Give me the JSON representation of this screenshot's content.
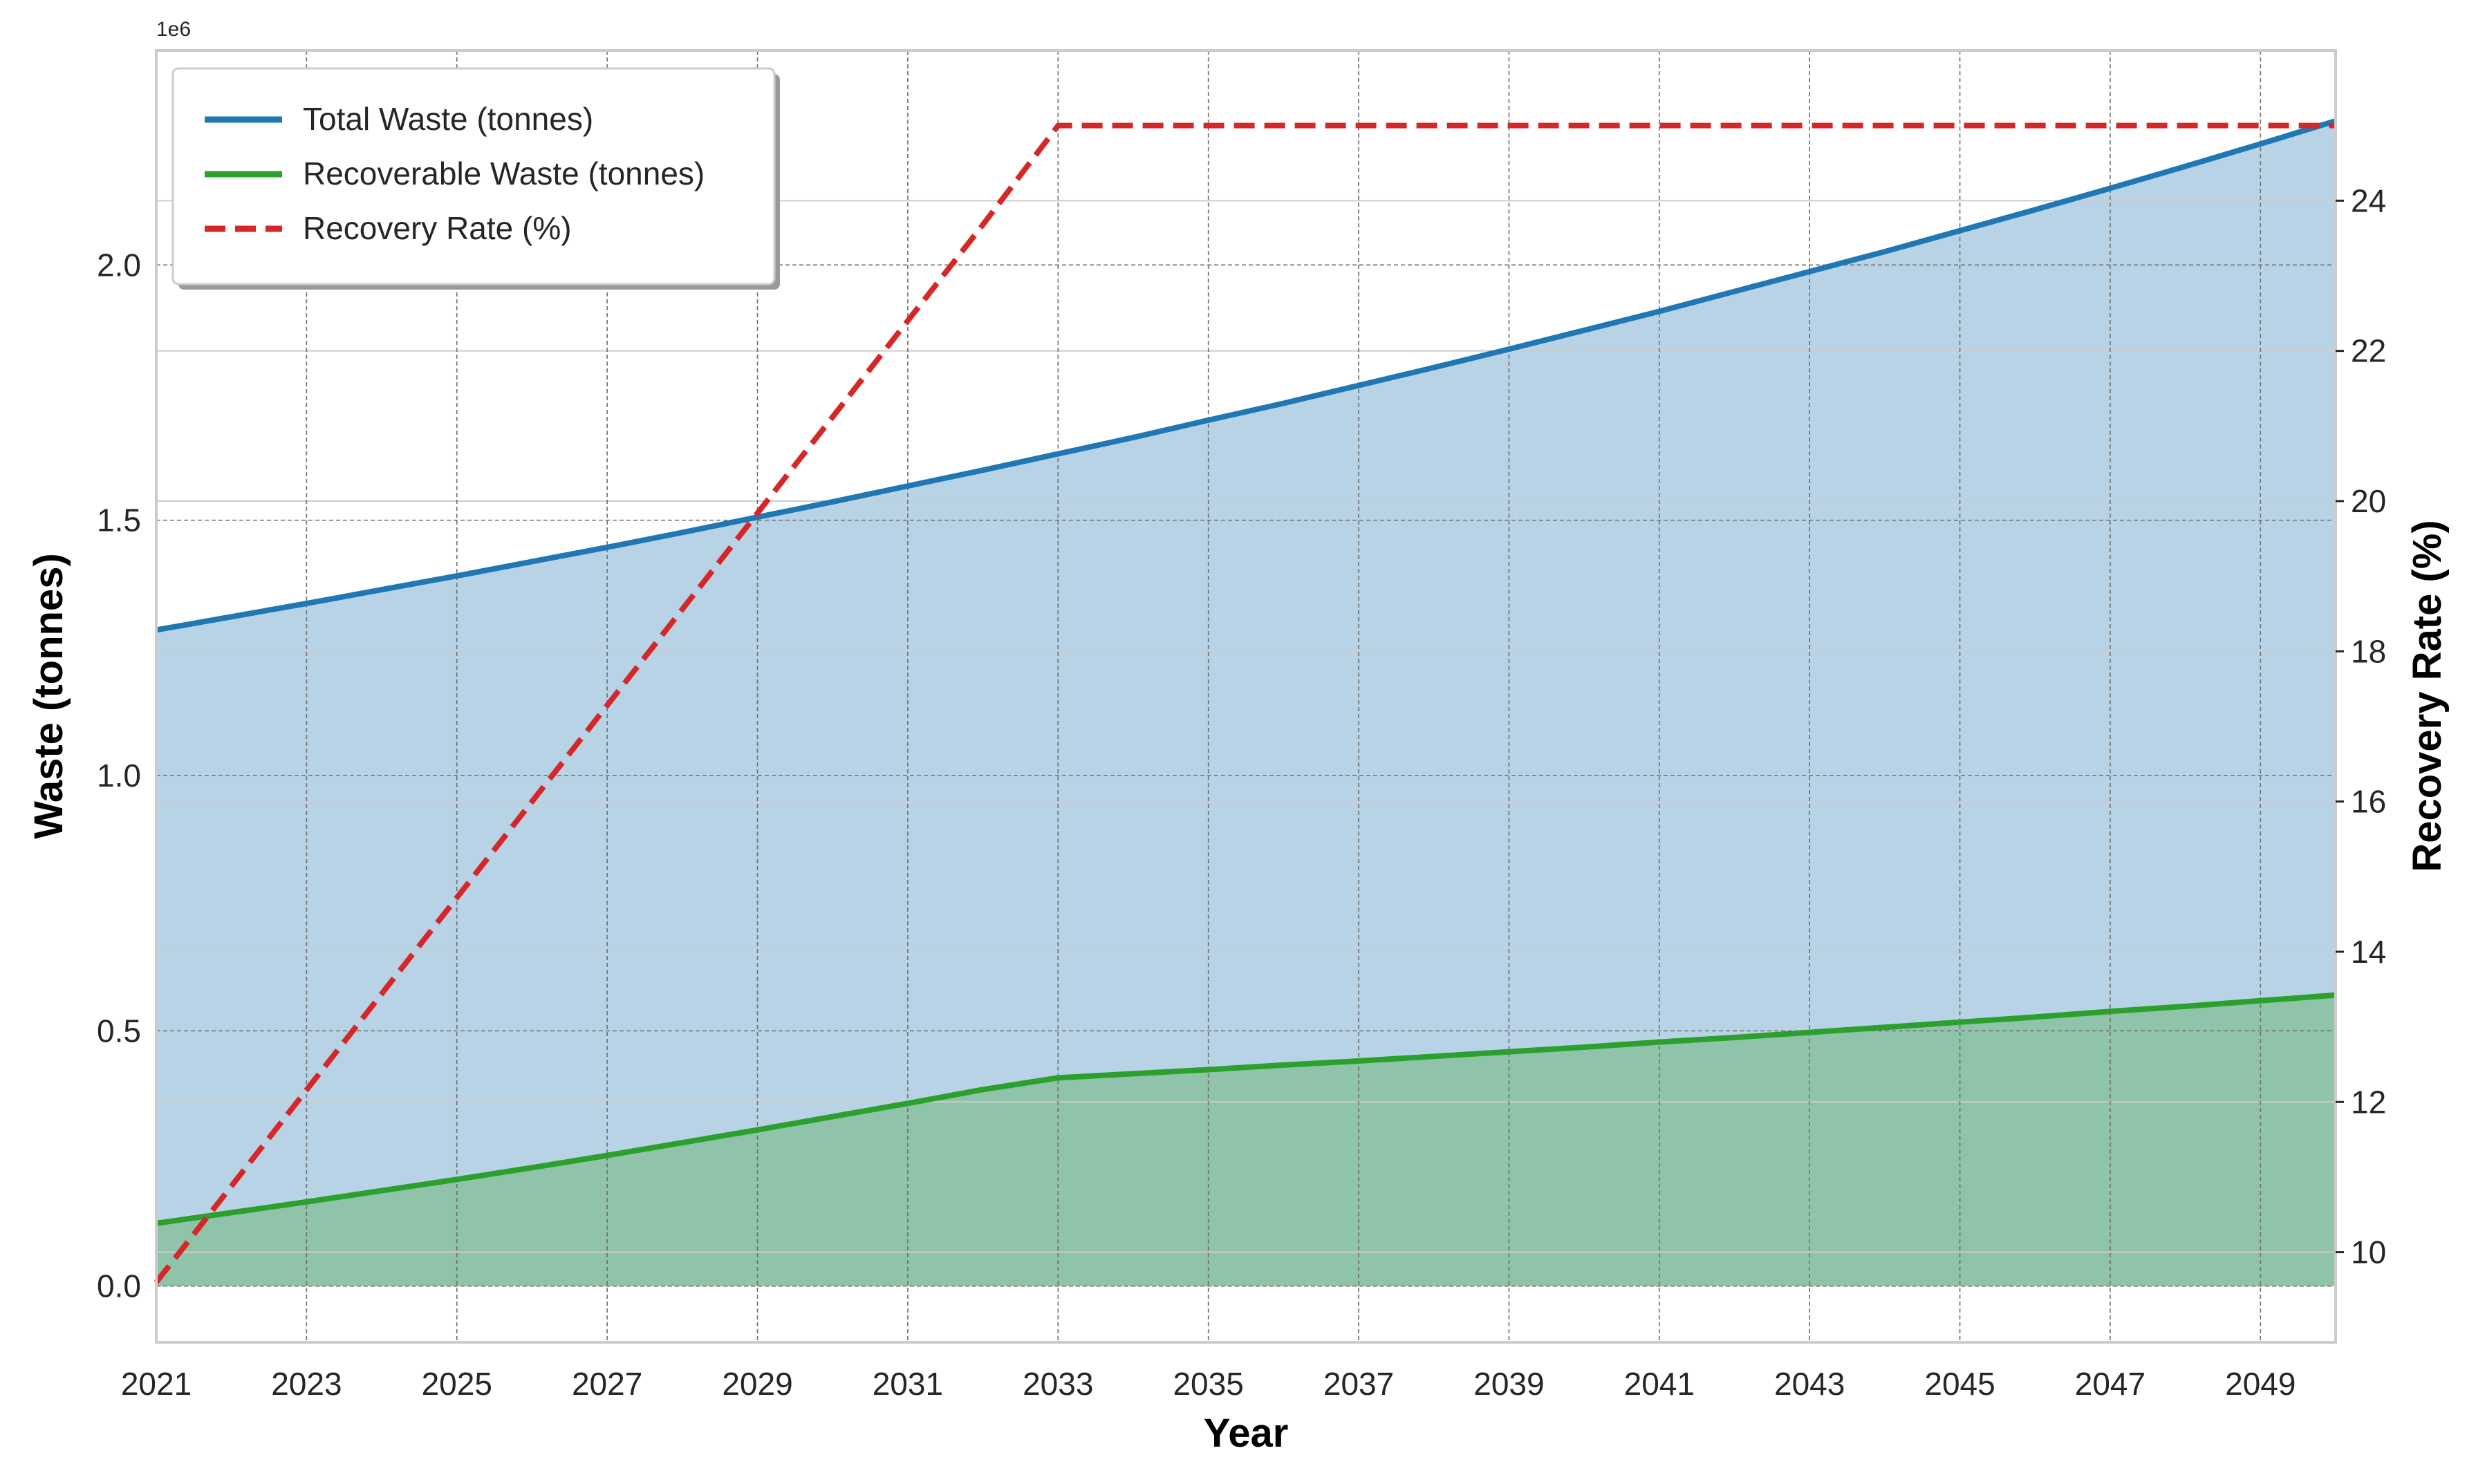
{
  "chart_data": {
    "type": "area",
    "xlabel": "Year",
    "ylabel": "Waste (tonnes)",
    "y2label": "Recovery Rate (%)",
    "offset_text": "1e6",
    "x": [
      2021,
      2022,
      2023,
      2024,
      2025,
      2026,
      2027,
      2028,
      2029,
      2030,
      2031,
      2032,
      2033,
      2034,
      2035,
      2036,
      2037,
      2038,
      2039,
      2040,
      2041,
      2042,
      2043,
      2044,
      2045,
      2046,
      2047,
      2048,
      2049,
      2050
    ],
    "xlim": [
      2021,
      2050
    ],
    "xticks": [
      "2021",
      "2023",
      "2025",
      "2027",
      "2029",
      "2031",
      "2033",
      "2035",
      "2037",
      "2039",
      "2041",
      "2043",
      "2045",
      "2047",
      "2049"
    ],
    "ylim": [
      -0.11,
      2.42
    ],
    "yticks": [
      "0.0",
      "0.5",
      "1.0",
      "1.5",
      "2.0"
    ],
    "y2lim": [
      8.8,
      26.0
    ],
    "y2ticks": [
      "10",
      "12",
      "14",
      "16",
      "18",
      "20",
      "22",
      "24"
    ],
    "grid": true,
    "legend_position": "top-left",
    "series": [
      {
        "name": "Total Waste (tonnes)",
        "axis": "left",
        "style": "solid",
        "fill": true,
        "color": "#1f77b4",
        "fill_color": "#b9d3e6",
        "values": [
          1.285,
          1.311,
          1.337,
          1.364,
          1.391,
          1.419,
          1.447,
          1.476,
          1.506,
          1.536,
          1.567,
          1.598,
          1.63,
          1.662,
          1.696,
          1.729,
          1.764,
          1.799,
          1.835,
          1.872,
          1.909,
          1.948,
          1.987,
          2.026,
          2.067,
          2.108,
          2.15,
          2.193,
          2.237,
          2.282
        ]
      },
      {
        "name": "Recoverable Waste (tonnes)",
        "axis": "left",
        "style": "solid",
        "fill": true,
        "color": "#2ca02c",
        "fill_color": "#8fc3aa",
        "values": [
          0.123,
          0.144,
          0.165,
          0.187,
          0.209,
          0.232,
          0.256,
          0.281,
          0.306,
          0.332,
          0.358,
          0.385,
          0.408,
          0.416,
          0.424,
          0.433,
          0.441,
          0.45,
          0.459,
          0.468,
          0.478,
          0.487,
          0.497,
          0.507,
          0.517,
          0.527,
          0.538,
          0.548,
          0.559,
          0.57
        ]
      },
      {
        "name": "Recovery Rate (%)",
        "axis": "right",
        "style": "dashed",
        "fill": false,
        "color": "#d62728",
        "values": [
          9.6,
          10.88,
          12.16,
          13.44,
          14.72,
          16.0,
          17.28,
          18.56,
          19.84,
          21.12,
          22.4,
          23.68,
          25.0,
          25.0,
          25.0,
          25.0,
          25.0,
          25.0,
          25.0,
          25.0,
          25.0,
          25.0,
          25.0,
          25.0,
          25.0,
          25.0,
          25.0,
          25.0,
          25.0,
          25.0
        ]
      }
    ]
  }
}
